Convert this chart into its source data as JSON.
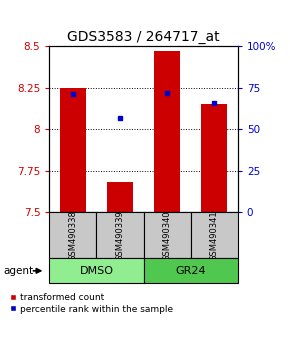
{
  "title": "GDS3583 / 264717_at",
  "samples": [
    "GSM490338",
    "GSM490339",
    "GSM490340",
    "GSM490341"
  ],
  "red_values": [
    8.25,
    7.68,
    8.47,
    8.15
  ],
  "blue_values": [
    71,
    57,
    72,
    66
  ],
  "ylim_left": [
    7.5,
    8.5
  ],
  "ylim_right": [
    0,
    100
  ],
  "yticks_left": [
    7.5,
    7.75,
    8.0,
    8.25,
    8.5
  ],
  "yticks_right": [
    0,
    25,
    50,
    75,
    100
  ],
  "ytick_labels_left": [
    "7.5",
    "7.75",
    "8",
    "8.25",
    "8.5"
  ],
  "ytick_labels_right": [
    "0",
    "25",
    "50",
    "75",
    "100%"
  ],
  "groups": [
    {
      "label": "DMSO",
      "indices": [
        0,
        1
      ],
      "color": "#90EE90"
    },
    {
      "label": "GR24",
      "indices": [
        2,
        3
      ],
      "color": "#50C850"
    }
  ],
  "group_label": "agent",
  "bar_color": "#CC0000",
  "dot_color": "#0000CC",
  "bar_width": 0.55,
  "legend_red": "transformed count",
  "legend_blue": "percentile rank within the sample",
  "sample_box_color": "#C8C8C8",
  "title_fontsize": 10,
  "tick_fontsize": 7.5,
  "sample_fontsize": 6,
  "group_fontsize": 8,
  "legend_fontsize": 6.5
}
